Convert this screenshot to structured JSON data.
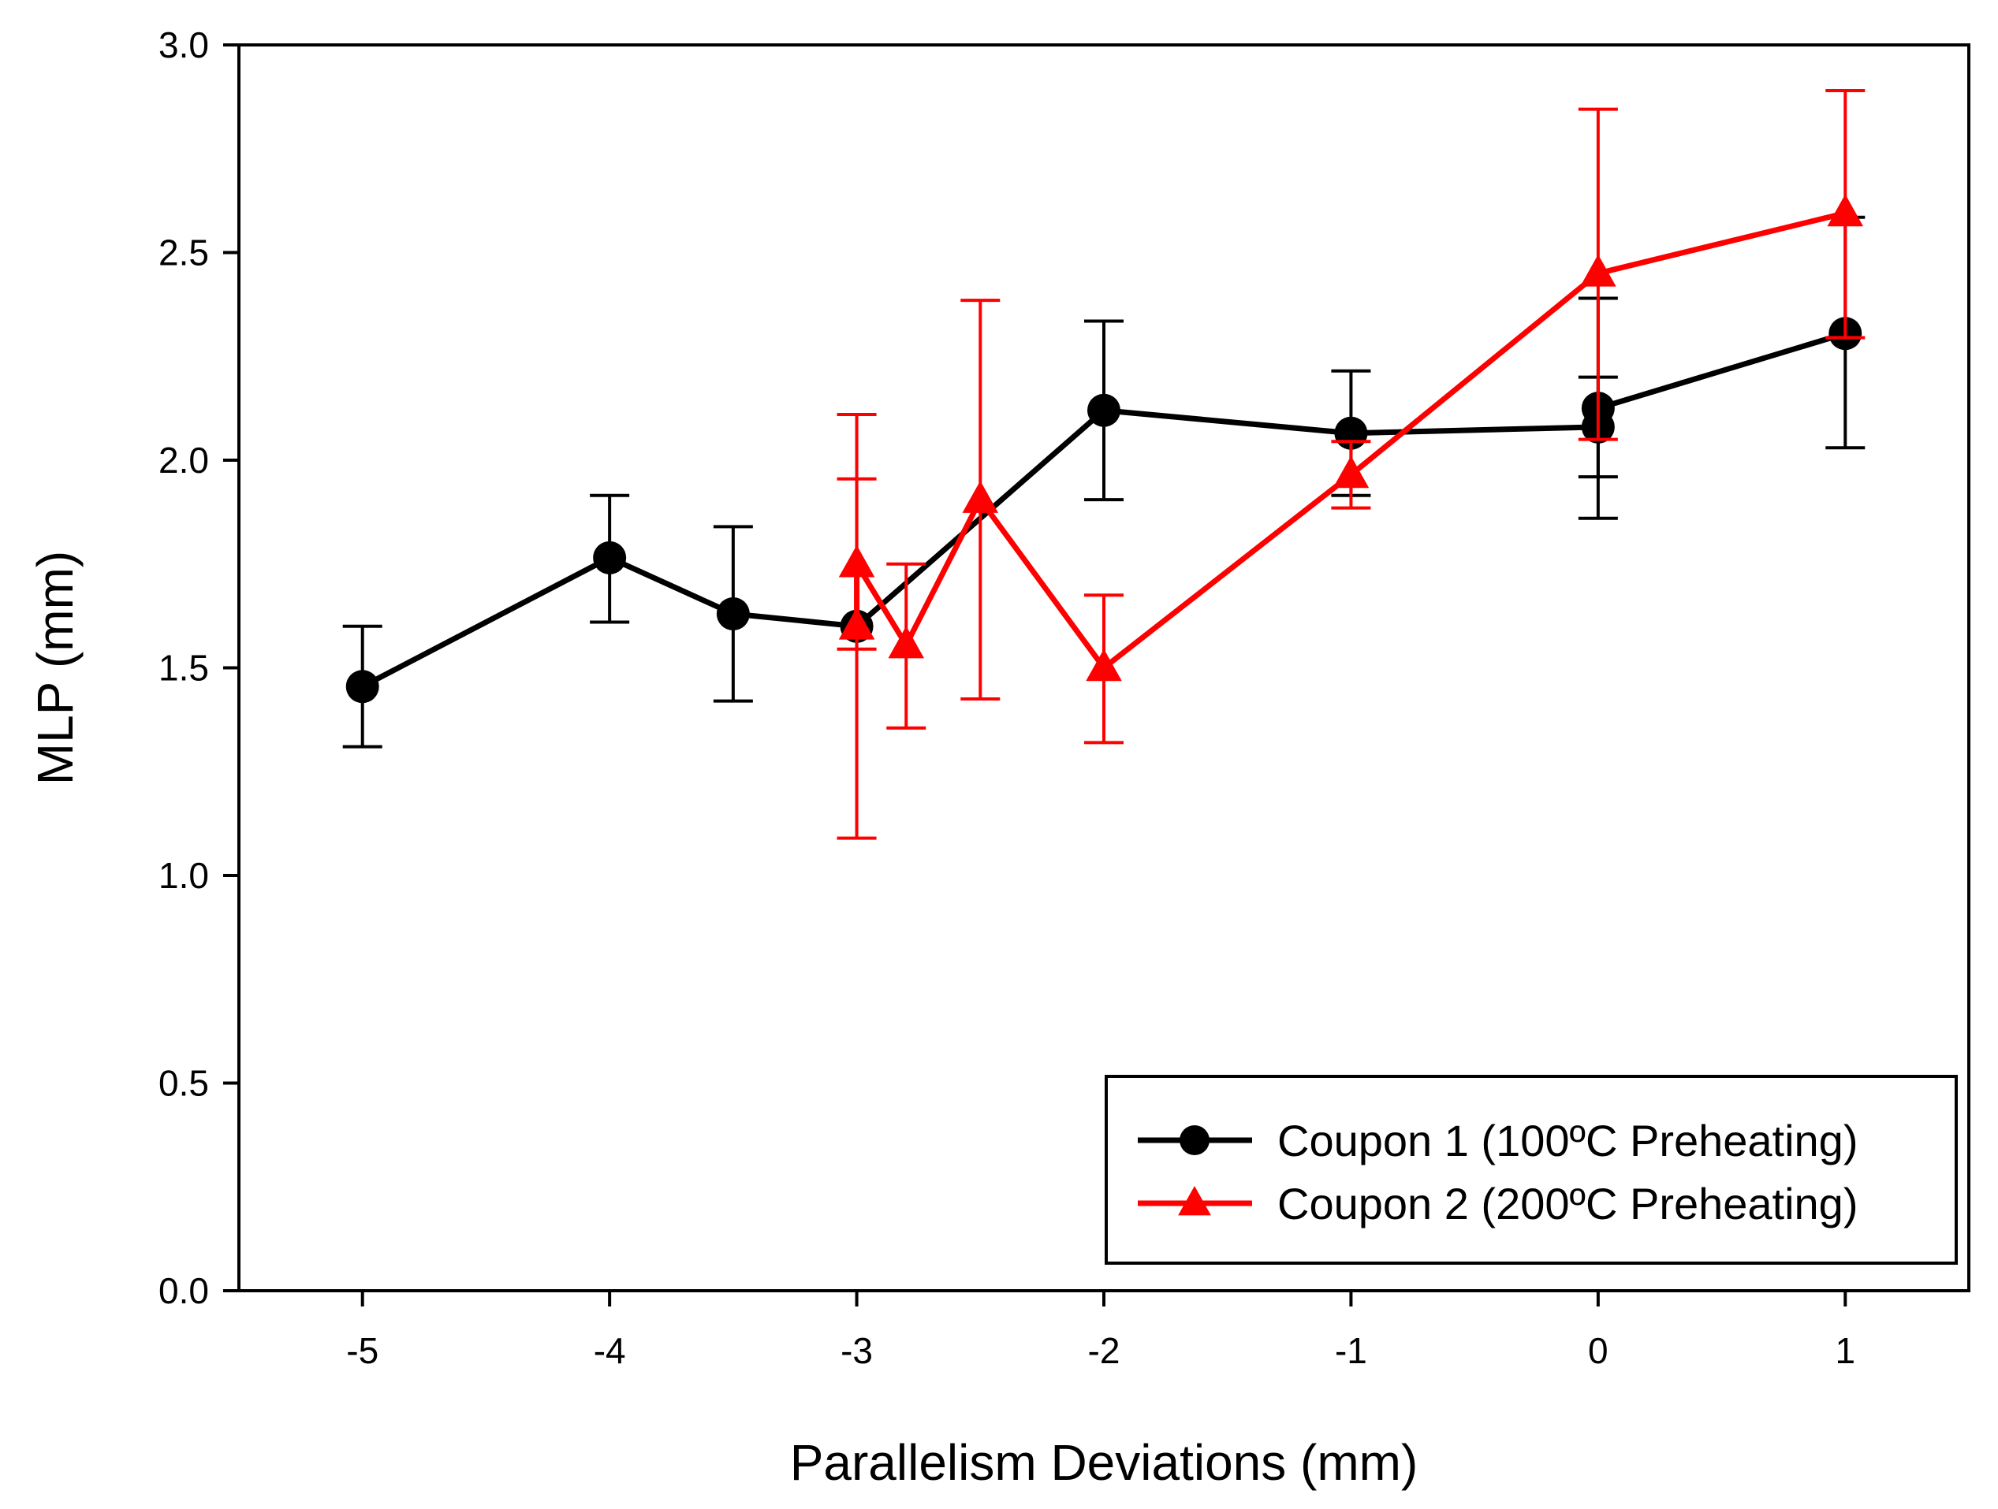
{
  "chart_data": {
    "type": "line",
    "title": "",
    "xlabel": "Parallelism Deviations (mm)",
    "ylabel": "MLP (mm)",
    "xlim": [
      -5.5,
      1.5
    ],
    "ylim": [
      0.0,
      3.0
    ],
    "xticks": [
      -5,
      -4,
      -3,
      -2,
      -1,
      0,
      1
    ],
    "xtick_labels": [
      "-5",
      "-4",
      "-3",
      "-2",
      "-1",
      "0",
      "1"
    ],
    "yticks": [
      0.0,
      0.5,
      1.0,
      1.5,
      2.0,
      2.5,
      3.0
    ],
    "ytick_labels": [
      "0.0",
      "0.5",
      "1.0",
      "1.5",
      "2.0",
      "2.5",
      "3.0"
    ],
    "grid": false,
    "legend_position": "bottom-right",
    "series": [
      {
        "name": "Coupon 1 (100ºC Preheating)",
        "color": "#000000",
        "marker": "circle",
        "points": [
          {
            "x": -5.0,
            "y": 1.455,
            "err_low": 1.31,
            "err_high": 1.6
          },
          {
            "x": -4.0,
            "y": 1.765,
            "err_low": 1.61,
            "err_high": 1.915
          },
          {
            "x": -3.5,
            "y": 1.63,
            "err_low": 1.42,
            "err_high": 1.84
          },
          {
            "x": -3.0,
            "y": 1.6,
            "err_low": null,
            "err_high": null
          },
          {
            "x": -2.0,
            "y": 2.12,
            "err_low": 1.905,
            "err_high": 2.335
          },
          {
            "x": -1.0,
            "y": 2.065,
            "err_low": 1.915,
            "err_high": 2.215
          },
          {
            "x": 0.0,
            "y": 2.08,
            "err_low": 1.96,
            "err_high": 2.2
          },
          {
            "x": 0.0,
            "y": 2.125,
            "err_low": 1.86,
            "err_high": 2.39
          },
          {
            "x": 1.0,
            "y": 2.305,
            "err_low": 2.03,
            "err_high": 2.585
          }
        ]
      },
      {
        "name": "Coupon 2 (200ºC Preheating)",
        "color": "#ff0000",
        "marker": "triangle",
        "points": [
          {
            "x": -3.0,
            "y": 1.6,
            "err_low": 1.09,
            "err_high": 2.11
          },
          {
            "x": -3.0,
            "y": 1.75,
            "err_low": 1.545,
            "err_high": 1.955
          },
          {
            "x": -2.8,
            "y": 1.555,
            "err_low": 1.355,
            "err_high": 1.75
          },
          {
            "x": -2.5,
            "y": 1.905,
            "err_low": 1.425,
            "err_high": 2.385
          },
          {
            "x": -2.0,
            "y": 1.5,
            "err_low": 1.32,
            "err_high": 1.675
          },
          {
            "x": -1.0,
            "y": 1.965,
            "err_low": 1.885,
            "err_high": 2.045
          },
          {
            "x": 0.0,
            "y": 2.45,
            "err_low": 2.05,
            "err_high": 2.845
          },
          {
            "x": 1.0,
            "y": 2.595,
            "err_low": 2.295,
            "err_high": 2.89
          }
        ]
      }
    ]
  }
}
